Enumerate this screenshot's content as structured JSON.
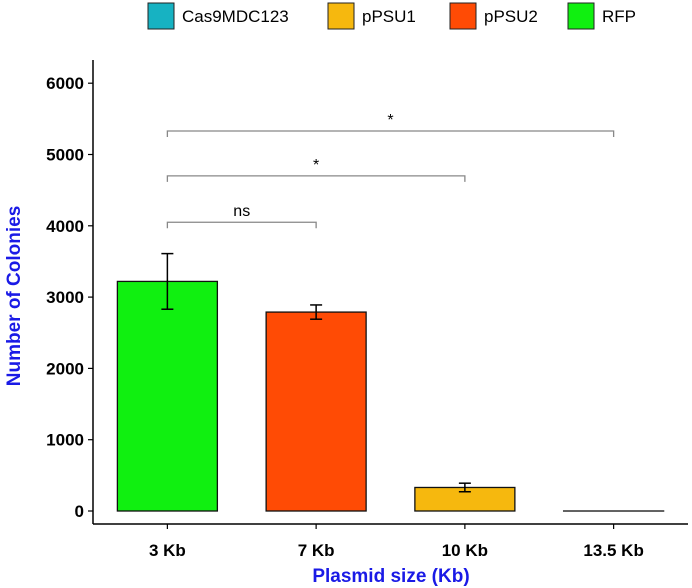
{
  "chart_data": {
    "type": "bar",
    "categories": [
      "3 Kb",
      "7 Kb",
      "10 Kb",
      "13.5 Kb"
    ],
    "values": [
      3220,
      2790,
      330,
      0
    ],
    "error_low": [
      2830,
      2690,
      270,
      0
    ],
    "error_high": [
      3610,
      2890,
      390,
      0
    ],
    "bar_series": [
      "RFP",
      "pPSU2",
      "pPSU1",
      "Cas9MDC123"
    ],
    "xlabel": "Plasmid size (Kb)",
    "ylabel": "Number of Colonies",
    "ylim": [
      0,
      6000
    ],
    "yticks": [
      0,
      1000,
      2000,
      3000,
      4000,
      5000,
      6000
    ],
    "grid": false,
    "legend": {
      "placement": "top",
      "entries": [
        {
          "name": "Cas9MDC123",
          "color": "#17b2c2"
        },
        {
          "name": "pPSU1",
          "color": "#f6b80e"
        },
        {
          "name": "pPSU2",
          "color": "#ff4b05"
        },
        {
          "name": "RFP",
          "color": "#10f010"
        }
      ]
    },
    "significance": [
      {
        "from": "3 Kb",
        "to": "7 Kb",
        "y": 4050,
        "label": "ns"
      },
      {
        "from": "3 Kb",
        "to": "10 Kb",
        "y": 4700,
        "label": "*"
      },
      {
        "from": "3 Kb",
        "to": "13.5 Kb",
        "y": 5330,
        "label": "*"
      }
    ],
    "colors": {
      "axis_title": "#1a1ae6",
      "bracket": "#888888"
    }
  }
}
